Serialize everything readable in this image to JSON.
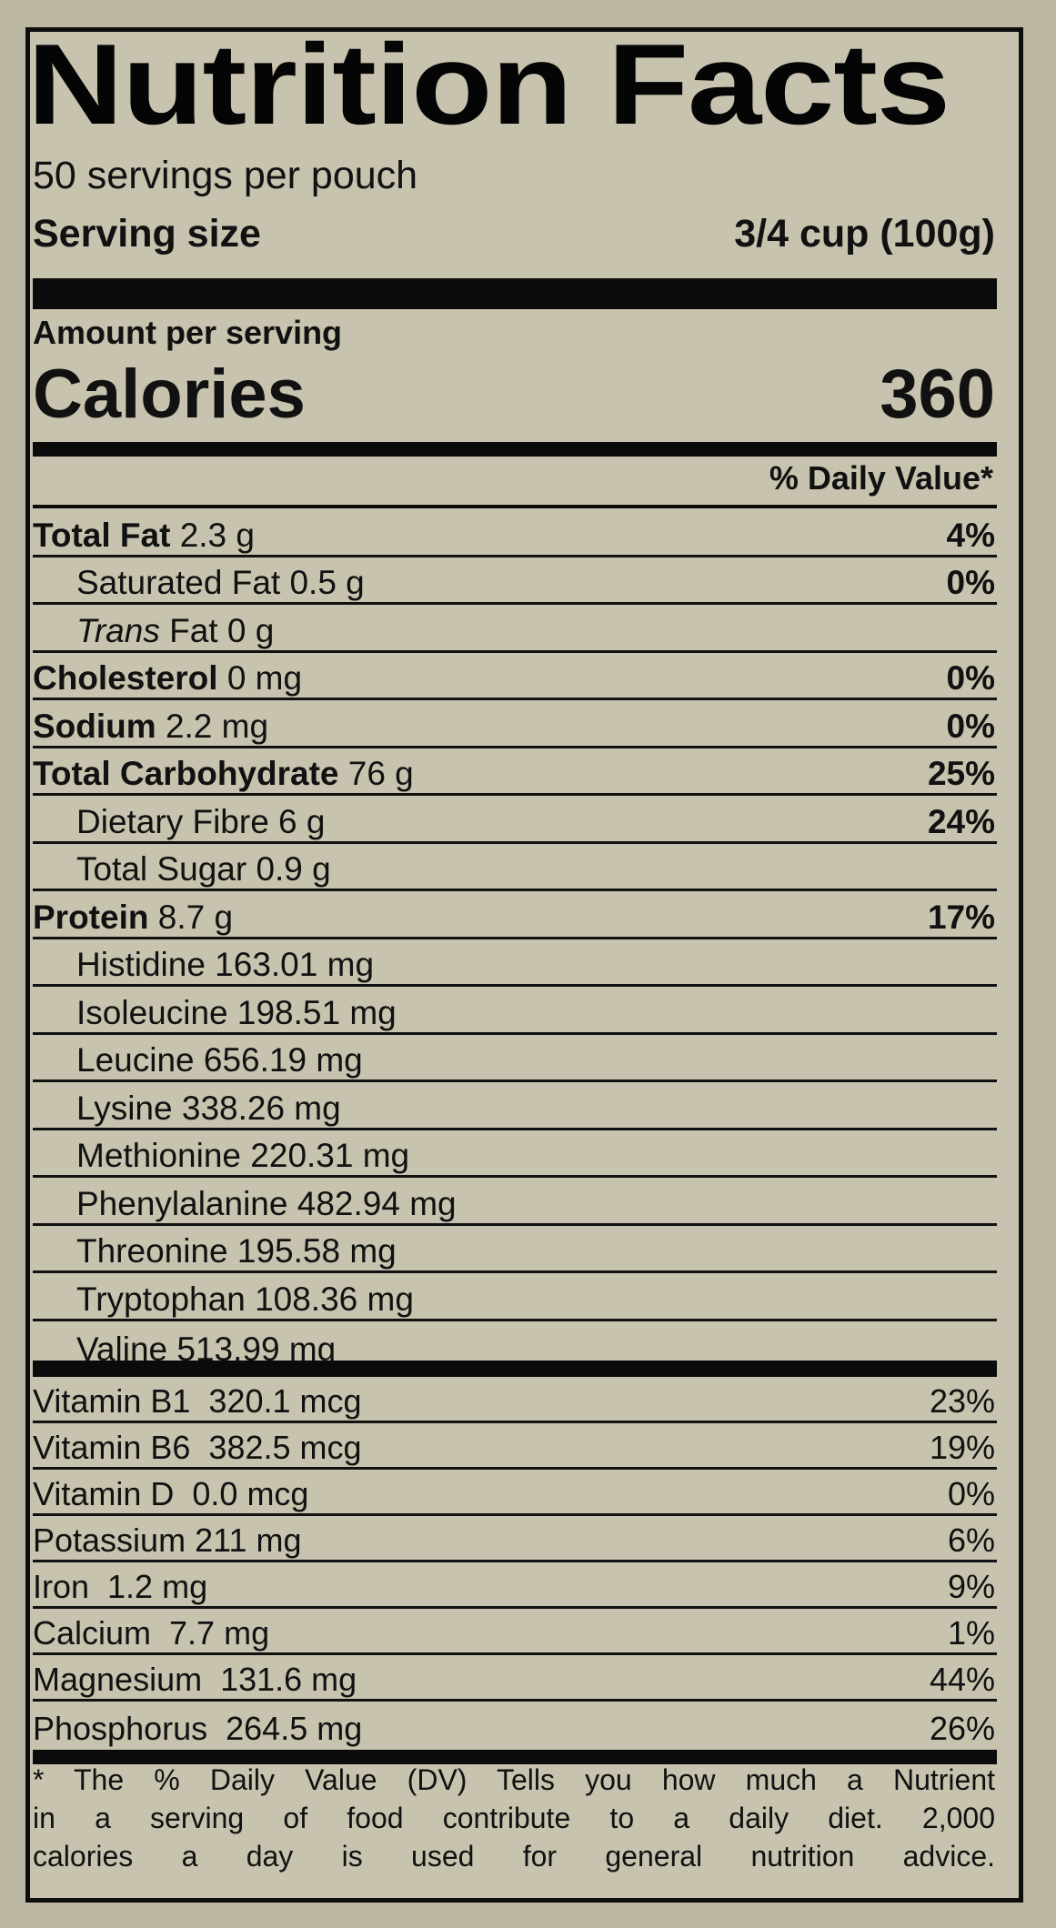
{
  "title": "Nutrition Facts",
  "servings_per_container": "50 servings per pouch",
  "serving_size_label": "Serving size",
  "serving_size_value": "3/4 cup (100g)",
  "amount_per_serving": "Amount per serving",
  "calories_label": "Calories",
  "calories_value": "360",
  "daily_value_header": "% Daily Value*",
  "nutrients": [
    {
      "bold": "Total Fat",
      "rest": " 2.3 g",
      "dv": "4%",
      "indent": false
    },
    {
      "bold": "",
      "rest": "Saturated Fat 0.5 g",
      "dv": "0%",
      "indent": true
    },
    {
      "bold": "",
      "italic": "Trans",
      "rest": " Fat 0 g",
      "dv": "",
      "indent": true
    },
    {
      "bold": "Cholesterol",
      "rest": " 0 mg",
      "dv": "0%",
      "indent": false
    },
    {
      "bold": "Sodium",
      "rest": " 2.2 mg",
      "dv": "0%",
      "indent": false
    },
    {
      "bold": "Total Carbohydrate",
      "rest": " 76 g",
      "dv": "25%",
      "indent": false
    },
    {
      "bold": "",
      "rest": "Dietary Fibre 6 g",
      "dv": "24%",
      "indent": true
    },
    {
      "bold": "",
      "rest": "Total Sugar 0.9 g",
      "dv": "",
      "indent": true
    },
    {
      "bold": "Protein",
      "rest": " 8.7 g",
      "dv": "17%",
      "indent": false
    },
    {
      "bold": "",
      "rest": "Histidine 163.01 mg",
      "dv": "",
      "indent": true
    },
    {
      "bold": "",
      "rest": "Isoleucine 198.51 mg",
      "dv": "",
      "indent": true
    },
    {
      "bold": "",
      "rest": "Leucine 656.19 mg",
      "dv": "",
      "indent": true
    },
    {
      "bold": "",
      "rest": "Lysine 338.26 mg",
      "dv": "",
      "indent": true
    },
    {
      "bold": "",
      "rest": "Methionine 220.31 mg",
      "dv": "",
      "indent": true
    },
    {
      "bold": "",
      "rest": "Phenylalanine 482.94 mg",
      "dv": "",
      "indent": true
    },
    {
      "bold": "",
      "rest": "Threonine 195.58 mg",
      "dv": "",
      "indent": true
    },
    {
      "bold": "",
      "rest": "Tryptophan 108.36 mg",
      "dv": "",
      "indent": true
    },
    {
      "bold": "",
      "rest": "Valine 513.99 mg",
      "dv": "",
      "indent": true
    }
  ],
  "vitamins": [
    {
      "name": "Vitamin B1  320.1 mcg",
      "dv": "23%"
    },
    {
      "name": "Vitamin B6  382.5 mcg",
      "dv": "19%"
    },
    {
      "name": "Vitamin D  0.0 mcg",
      "dv": "0%"
    },
    {
      "name": "Potassium 211 mg",
      "dv": "6%"
    },
    {
      "name": "Iron  1.2 mg",
      "dv": "9%"
    },
    {
      "name": "Calcium  7.7 mg",
      "dv": "1%"
    },
    {
      "name": "Magnesium  131.6 mg",
      "dv": "44%"
    },
    {
      "name": "Phosphorus  264.5 mg",
      "dv": "26%"
    }
  ],
  "footnote_lines": [
    "* The % Daily Value (DV) Tells you how much a Nutrient",
    "in a serving of food contribute to a daily diet. 2,000",
    "calories a day is used for general nutrition advice."
  ]
}
